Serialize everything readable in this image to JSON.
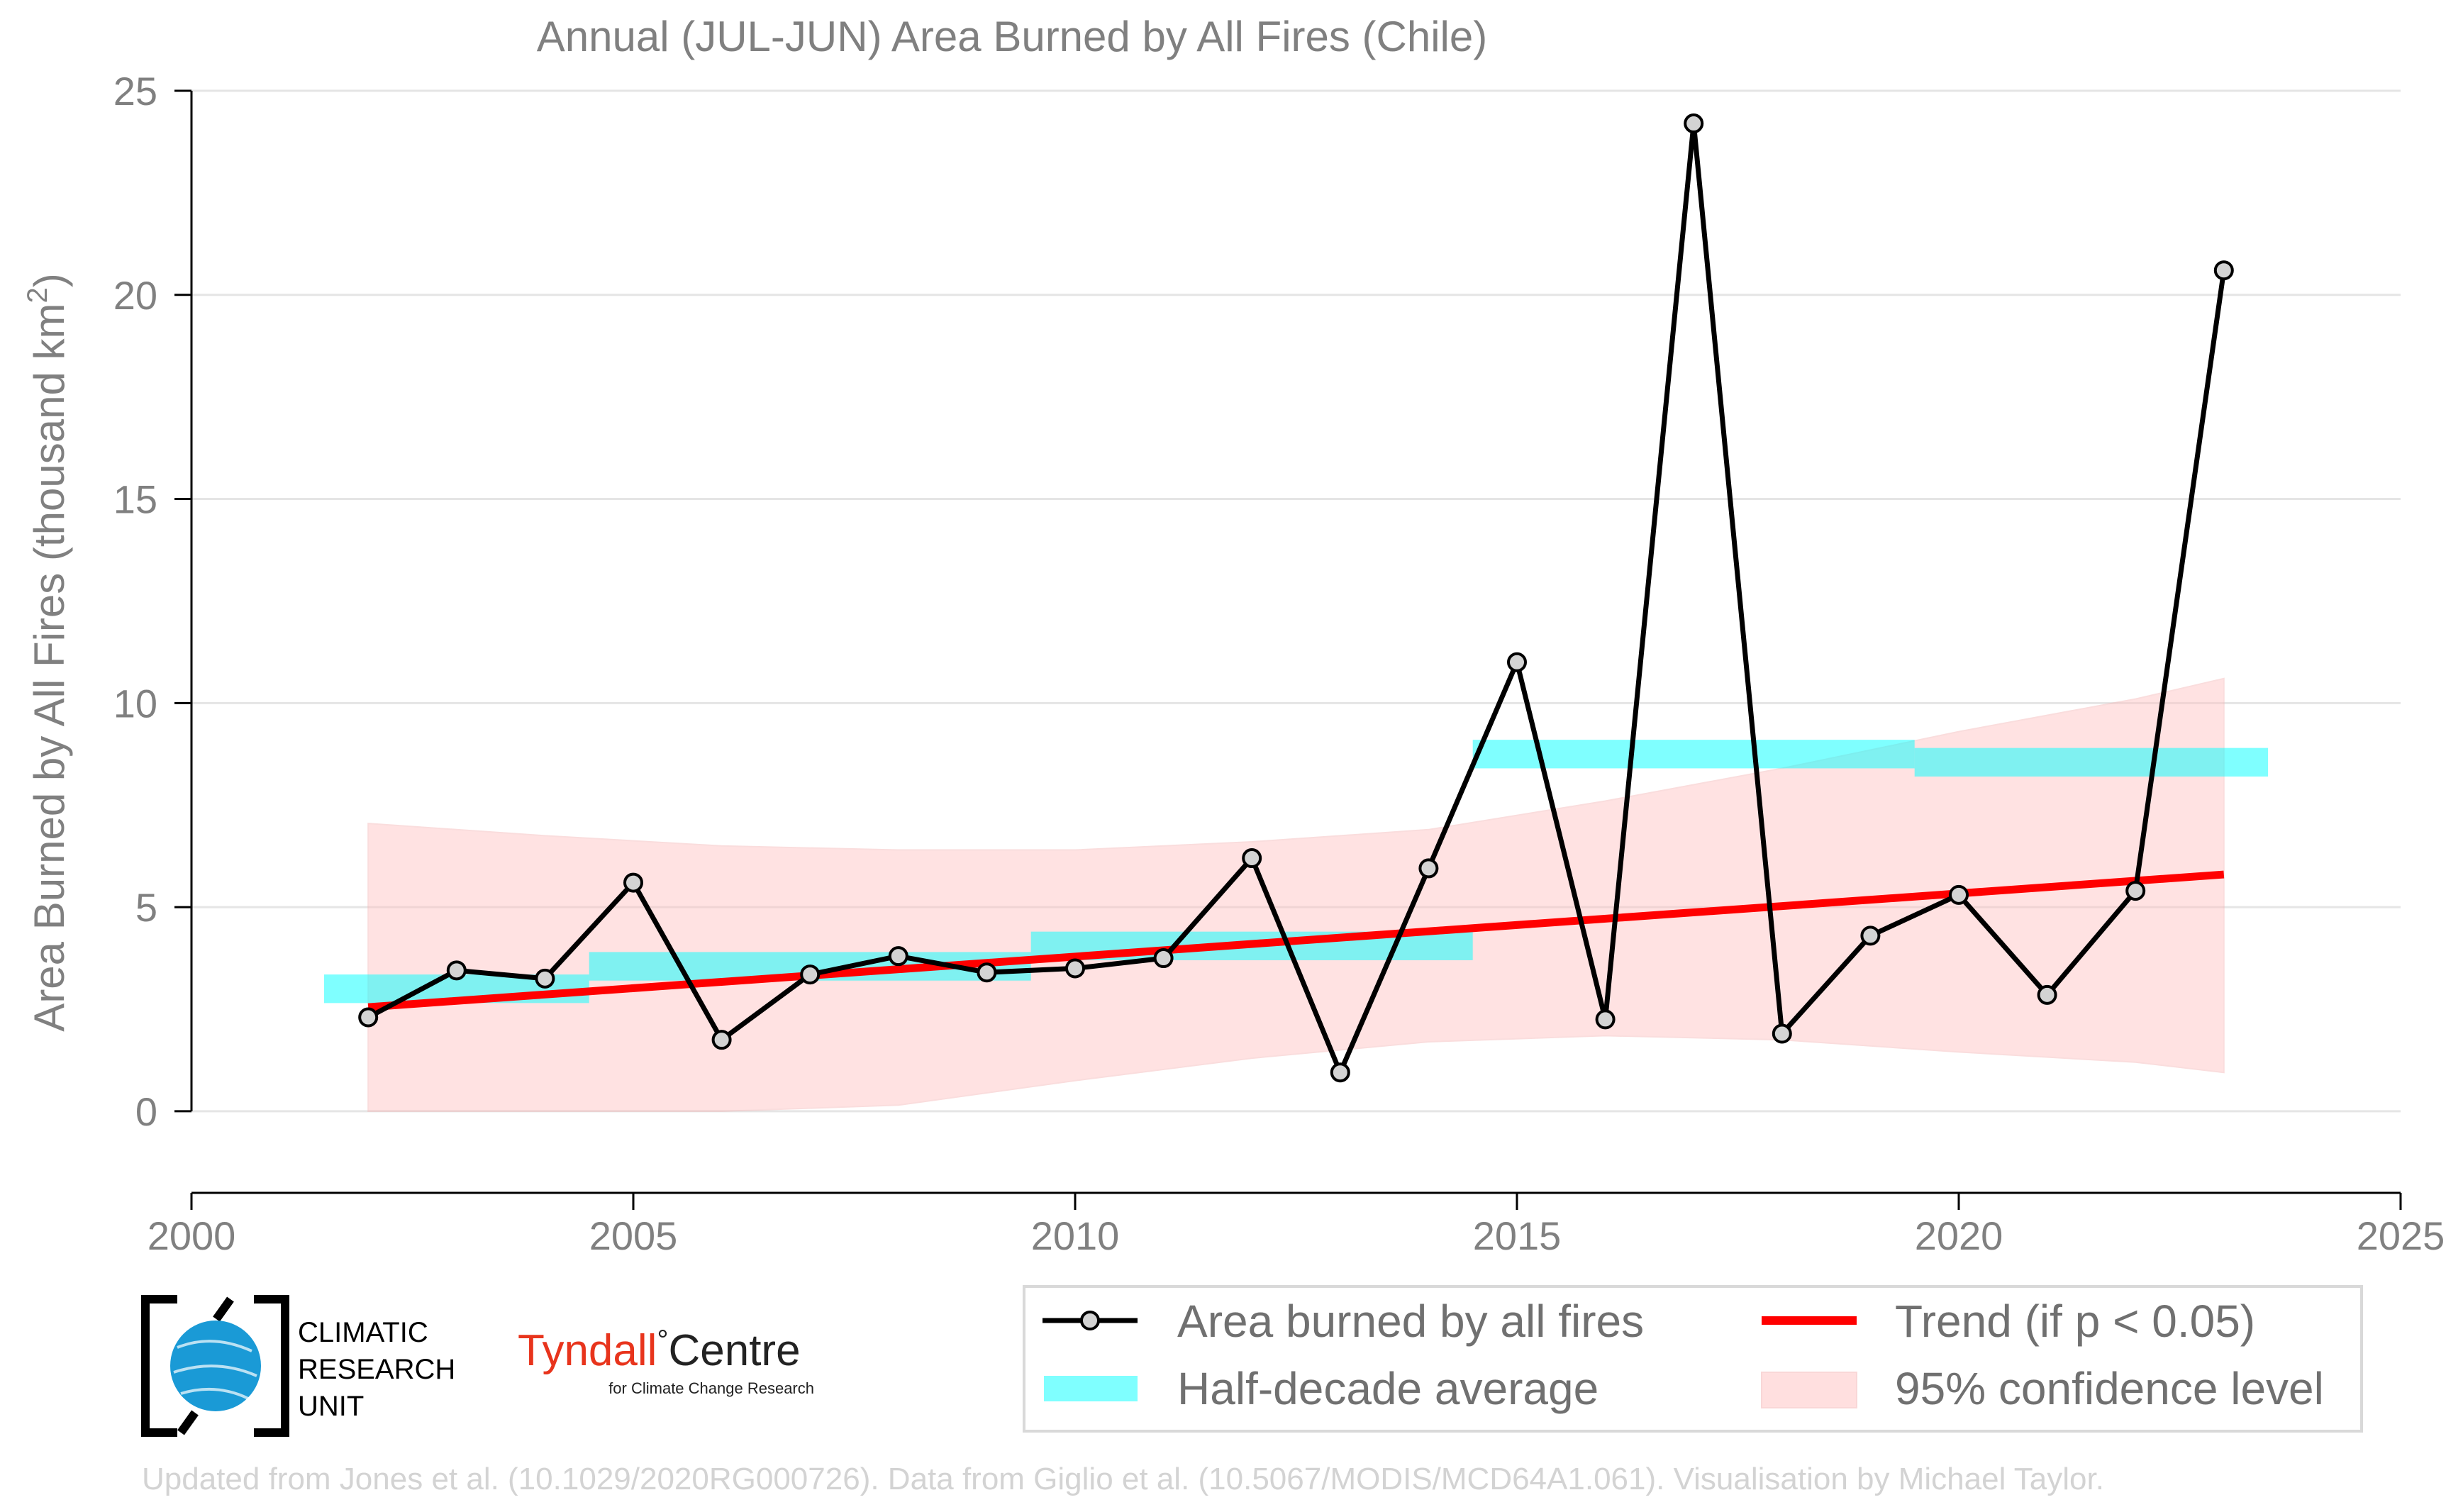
{
  "chart_data": {
    "type": "line",
    "title": "Annual (JUL-JUN) Area Burned by All Fires (Chile)",
    "ylabel": "Area Burned by All Fires (thousand km",
    "ylabel_sup": "2",
    "ylabel_close": ")",
    "xlim": [
      2000,
      2025
    ],
    "ylim": [
      -2,
      25
    ],
    "x_ticks": [
      2000,
      2005,
      2010,
      2015,
      2020,
      2025
    ],
    "y_ticks": [
      0,
      5,
      10,
      15,
      20,
      25
    ],
    "grid": "horizontal",
    "series": [
      {
        "name": "Area burned by all fires",
        "x": [
          2002,
          2003,
          2004,
          2005,
          2006,
          2007,
          2008,
          2009,
          2010,
          2011,
          2012,
          2013,
          2014,
          2015,
          2016,
          2017,
          2018,
          2019,
          2020,
          2021,
          2022,
          2023
        ],
        "y": [
          2.3,
          3.45,
          3.25,
          5.6,
          1.75,
          3.35,
          3.8,
          3.4,
          3.5,
          3.75,
          6.2,
          0.95,
          5.95,
          11.0,
          2.25,
          24.2,
          1.9,
          4.3,
          5.3,
          2.85,
          5.4,
          20.6
        ]
      }
    ],
    "half_decade_average": {
      "name": "Half-decade average",
      "periods": [
        {
          "x0": 2001.5,
          "x1": 2004.5,
          "y": 3.0
        },
        {
          "x0": 2004.5,
          "x1": 2009.5,
          "y": 3.55
        },
        {
          "x0": 2009.5,
          "x1": 2014.5,
          "y": 4.05
        },
        {
          "x0": 2014.5,
          "x1": 2019.5,
          "y": 8.75
        },
        {
          "x0": 2019.5,
          "x1": 2023.5,
          "y": 8.55
        }
      ]
    },
    "trend": {
      "name": "Trend (if p < 0.05)",
      "x": [
        2002,
        2023
      ],
      "y": [
        2.55,
        5.8
      ]
    },
    "confidence": {
      "name": "95% confidence level",
      "x": [
        2002,
        2004,
        2006,
        2008,
        2010,
        2012,
        2014,
        2016,
        2018,
        2020,
        2022,
        2023
      ],
      "upper": [
        7.05,
        6.75,
        6.5,
        6.4,
        6.4,
        6.6,
        6.9,
        7.6,
        8.4,
        9.3,
        10.1,
        10.6
      ],
      "lower": [
        0.0,
        0.0,
        0.0,
        0.15,
        0.75,
        1.3,
        1.7,
        1.85,
        1.75,
        1.45,
        1.2,
        0.95
      ]
    },
    "legend_position": "bottom-right, below plot"
  },
  "colors": {
    "line": "#000000",
    "marker_fill": "#d3d3d3",
    "half_decade": "#00ffff",
    "trend": "#ff0000",
    "confidence": "#ffc0c0",
    "grid": "#e5e5e5",
    "text": "#808080",
    "footer": "#d3d3d3",
    "tyndall_red": "#e8341c"
  },
  "legend": {
    "series_label": "Area burned by all fires",
    "half_label": "Half-decade average",
    "trend_label": "Trend (if p < 0.05)",
    "ci_label": "95% confidence level"
  },
  "logos": {
    "cru_line1": "CLIMATIC",
    "cru_line2": "RESEARCH",
    "cru_line3": "UNIT",
    "tyndall_main": "Tyndall",
    "tyndall_degree": "°",
    "tyndall_centre": "Centre",
    "tyndall_sub": "for Climate Change Research"
  },
  "footer": "Updated from Jones et al. (10.1029/2020RG000726). Data from Giglio et al. (10.5067/MODIS/MCD64A1.061). Visualisation by Michael Taylor."
}
